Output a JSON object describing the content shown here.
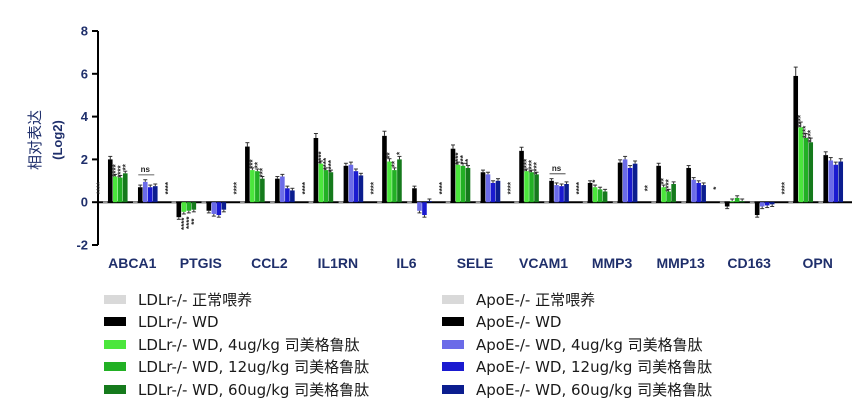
{
  "chart_data": {
    "type": "bar",
    "ylabel": "相对表达",
    "ylabel_sub": "(Log2)",
    "ylim": [
      -2,
      8
    ],
    "yticks": [
      -2,
      0,
      2,
      4,
      6,
      8
    ],
    "categories": [
      "ABCA1",
      "PTGIS",
      "CCL2",
      "IL1RN",
      "IL6",
      "SELE",
      "VCAM1",
      "MMP3",
      "MMP13",
      "CD163",
      "OPN"
    ],
    "series": [
      {
        "name": "LDLr-/- 正常喂养",
        "color": "#d9d9d9",
        "values": [
          0,
          0,
          0,
          0,
          0,
          0,
          0,
          0,
          0,
          0,
          0
        ]
      },
      {
        "name": "LDLr-/- WD",
        "color": "#000000",
        "values": [
          2.0,
          -0.7,
          2.6,
          3.0,
          3.1,
          2.5,
          2.4,
          0.9,
          1.7,
          -0.2,
          5.9
        ]
      },
      {
        "name": "LDLr-/- WD, 4ug/kg 司美格鲁肽",
        "color": "#4be63c",
        "values": [
          1.2,
          -0.45,
          1.5,
          1.8,
          1.9,
          1.75,
          1.45,
          0.7,
          0.7,
          0.05,
          3.5
        ]
      },
      {
        "name": "LDLr-/- WD, 12ug/kg 司美格鲁肽",
        "color": "#22b024",
        "values": [
          1.15,
          -0.4,
          1.45,
          1.5,
          1.5,
          1.7,
          1.4,
          0.6,
          0.5,
          0.2,
          3.0
        ]
      },
      {
        "name": "LDLr-/- WD, 60ug/kg 司美格鲁肽",
        "color": "#157a1c",
        "values": [
          1.35,
          -0.35,
          1.1,
          1.4,
          2.0,
          1.6,
          1.3,
          0.5,
          0.85,
          0.05,
          2.8
        ]
      },
      {
        "name": "ApoE-/- 正常喂养",
        "color": "#d9d9d9",
        "values": [
          0,
          0,
          0,
          0,
          0,
          0,
          0,
          0,
          0,
          0,
          0
        ]
      },
      {
        "name": "ApoE-/- WD",
        "color": "#000000",
        "values": [
          0.7,
          -0.4,
          1.1,
          1.7,
          0.65,
          1.4,
          1.0,
          1.85,
          1.6,
          -0.6,
          2.2
        ]
      },
      {
        "name": "ApoE-/- WD, 4ug/kg 司美格鲁肽",
        "color": "#6b6be8",
        "values": [
          0.95,
          -0.55,
          1.2,
          1.75,
          -0.4,
          1.3,
          0.8,
          2.0,
          1.05,
          -0.2,
          1.95
        ]
      },
      {
        "name": "ApoE-/- WD, 12ug/kg 司美格鲁肽",
        "color": "#1a1ad0",
        "values": [
          0.7,
          -0.6,
          0.65,
          1.45,
          -0.6,
          0.9,
          0.75,
          1.6,
          0.9,
          -0.15,
          1.75
        ]
      },
      {
        "name": "ApoE-/- WD, 60ug/kg 司美格鲁肽",
        "color": "#0b1d8f",
        "values": [
          0.75,
          -0.35,
          0.55,
          1.25,
          0.05,
          1.0,
          0.85,
          1.8,
          0.8,
          -0.1,
          1.9
        ]
      }
    ],
    "significance": {
      "ABCA1": [
        "****",
        "****",
        "****",
        "**",
        "ns"
      ],
      "PTGIS": [
        "****",
        "****",
        "****",
        "**"
      ],
      "CCL2": [
        "****",
        "***",
        "**",
        "***"
      ],
      "IL1RN": [
        "****",
        "****",
        "****",
        "****"
      ],
      "IL6": [
        "****",
        "**",
        "**",
        "*"
      ],
      "SELE": [
        "****",
        "****",
        "***",
        "**"
      ],
      "VCAM1": [
        "****",
        "****",
        "****",
        "****",
        "ns"
      ],
      "MMP3": [
        "****",
        "*"
      ],
      "MMP13": [
        "**",
        "**",
        "****"
      ],
      "CD163": [
        "*"
      ],
      "OPN": [
        "****",
        "****",
        "****",
        "****"
      ]
    },
    "grid": false,
    "legend": "bottom"
  }
}
